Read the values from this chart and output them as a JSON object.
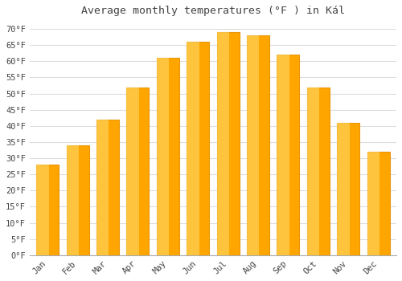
{
  "title": "Average monthly temperatures (°F ) in Kál",
  "months": [
    "Jan",
    "Feb",
    "Mar",
    "Apr",
    "May",
    "Jun",
    "Jul",
    "Aug",
    "Sep",
    "Oct",
    "Nov",
    "Dec"
  ],
  "values": [
    28,
    34,
    42,
    52,
    61,
    66,
    69,
    68,
    62,
    52,
    41,
    32
  ],
  "bar_color_light": "#FFD966",
  "bar_color_dark": "#FFA500",
  "background_color": "#FFFFFF",
  "grid_color": "#DDDDDD",
  "text_color": "#444444",
  "spine_color": "#AAAAAA",
  "ylim": [
    0,
    72
  ],
  "yticks": [
    0,
    5,
    10,
    15,
    20,
    25,
    30,
    35,
    40,
    45,
    50,
    55,
    60,
    65,
    70
  ],
  "title_fontsize": 9.5,
  "tick_fontsize": 7.5
}
